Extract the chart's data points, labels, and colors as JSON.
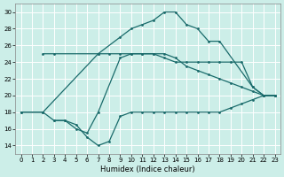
{
  "xlabel": "Humidex (Indice chaleur)",
  "bg_color": "#cceee8",
  "grid_color": "#ffffff",
  "line_color": "#1a6b6b",
  "xlim": [
    -0.5,
    23.5
  ],
  "ylim": [
    13,
    31
  ],
  "yticks": [
    14,
    16,
    18,
    20,
    22,
    24,
    26,
    28,
    30
  ],
  "xticks": [
    0,
    1,
    2,
    3,
    4,
    5,
    6,
    7,
    8,
    9,
    10,
    11,
    12,
    13,
    14,
    15,
    16,
    17,
    18,
    19,
    20,
    21,
    22,
    23
  ],
  "line1_x": [
    0,
    2,
    7,
    9,
    10,
    11,
    12,
    13,
    14,
    15,
    16,
    17,
    18,
    21,
    22,
    23
  ],
  "line1_y": [
    18,
    18,
    25,
    27,
    28,
    28.5,
    29,
    30,
    30,
    28.5,
    28,
    26.5,
    26.5,
    21,
    20,
    20
  ],
  "line2_x": [
    2,
    3,
    7,
    8,
    9,
    10,
    11,
    12,
    13,
    14,
    15,
    16,
    17,
    18,
    19,
    20,
    21,
    22,
    23
  ],
  "line2_y": [
    25,
    25,
    25,
    25,
    25,
    25,
    25,
    25,
    25,
    24.5,
    23.5,
    23,
    22.5,
    22,
    21.5,
    21,
    20.5,
    20,
    20
  ],
  "line3_x": [
    0,
    2,
    3,
    4,
    5,
    6,
    7,
    9,
    10,
    11,
    12,
    13,
    14,
    15,
    16,
    17,
    18,
    19,
    20,
    21,
    22,
    23
  ],
  "line3_y": [
    18,
    18,
    17,
    17,
    16,
    15.5,
    18,
    24.5,
    25,
    25,
    25,
    24.5,
    24,
    24,
    24,
    24,
    24,
    24,
    24,
    21,
    20,
    20
  ],
  "line4_x": [
    3,
    4,
    5,
    6,
    7,
    8,
    9,
    10,
    11,
    12,
    13,
    14,
    15,
    16,
    17,
    18,
    19,
    20,
    21,
    22,
    23
  ],
  "line4_y": [
    17,
    17,
    16.5,
    15,
    14,
    14.5,
    17.5,
    18,
    18,
    18,
    18,
    18,
    18,
    18,
    18,
    18,
    18.5,
    19,
    19.5,
    20,
    20
  ]
}
